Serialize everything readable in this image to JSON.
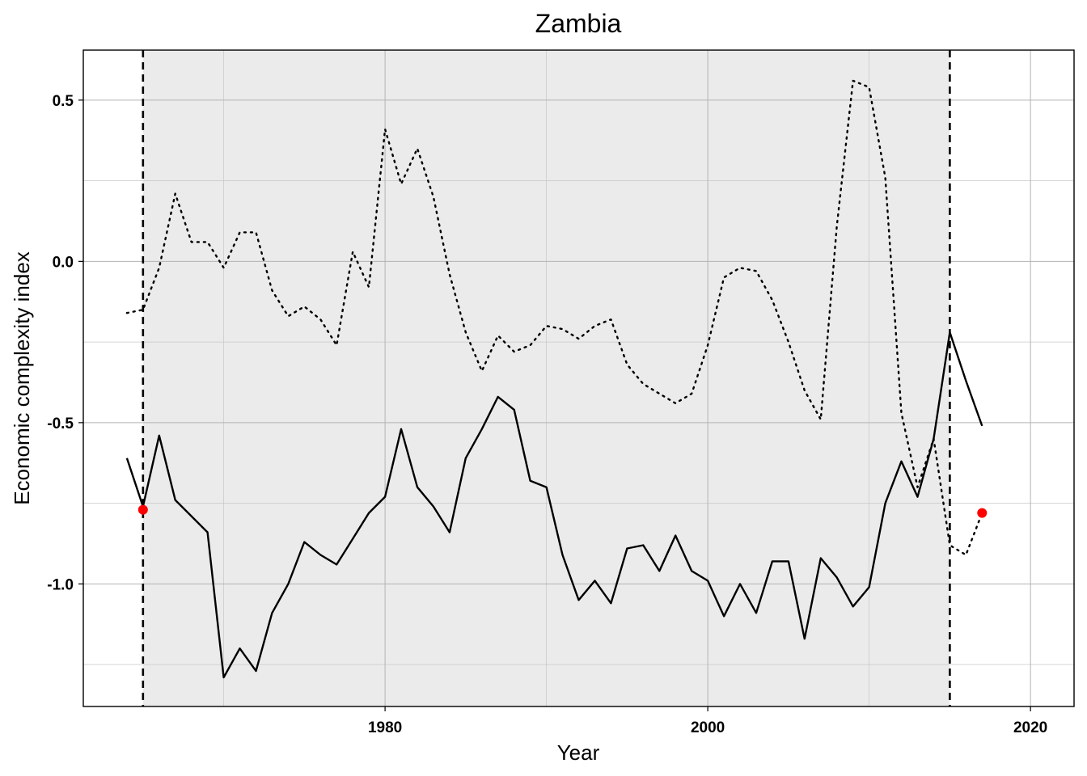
{
  "chart_data": {
    "type": "line",
    "title": "Zambia",
    "xlabel": "Year",
    "ylabel": "Economic complexity index",
    "xlim": [
      1961.3,
      2022.7
    ],
    "ylim": [
      -1.38,
      0.655
    ],
    "x_ticks": [
      1980,
      2000,
      2020
    ],
    "y_ticks": [
      -1.0,
      -0.5,
      0.0,
      0.5
    ],
    "y_tick_labels": [
      "-1.0",
      "-0.5",
      "0.0",
      "0.5"
    ],
    "x_minor_ticks": [
      1970,
      1990,
      2010
    ],
    "y_minor_ticks": [
      -1.25,
      -0.75,
      -0.25,
      0.25
    ],
    "grid": true,
    "legend": "none",
    "shaded_region": {
      "x_start": 1965,
      "x_end": 2015
    },
    "vertical_lines": [
      1965,
      2015
    ],
    "series": [
      {
        "style": "solid",
        "x": [
          1964,
          1965,
          1966,
          1967,
          1968,
          1969,
          1970,
          1971,
          1972,
          1973,
          1974,
          1975,
          1976,
          1977,
          1978,
          1979,
          1980,
          1981,
          1982,
          1983,
          1984,
          1985,
          1986,
          1987,
          1988,
          1989,
          1990,
          1991,
          1992,
          1993,
          1994,
          1995,
          1996,
          1997,
          1998,
          1999,
          2000,
          2001,
          2002,
          2003,
          2004,
          2005,
          2006,
          2007,
          2008,
          2009,
          2010,
          2011,
          2012,
          2013,
          2014,
          2015,
          2016,
          2017
        ],
        "values": [
          -0.61,
          -0.76,
          -0.54,
          -0.74,
          -0.79,
          -0.84,
          -1.29,
          -1.2,
          -1.27,
          -1.09,
          -1.0,
          -0.87,
          -0.91,
          -0.94,
          -0.86,
          -0.78,
          -0.73,
          -0.52,
          -0.7,
          -0.76,
          -0.84,
          -0.61,
          -0.52,
          -0.42,
          -0.46,
          -0.68,
          -0.7,
          -0.91,
          -1.05,
          -0.99,
          -1.06,
          -0.89,
          -0.88,
          -0.96,
          -0.85,
          -0.96,
          -0.99,
          -1.1,
          -1.0,
          -1.09,
          -0.93,
          -0.93,
          -1.17,
          -0.92,
          -0.98,
          -1.07,
          -1.01,
          -0.75,
          -0.62,
          -0.73,
          -0.55,
          -0.22,
          -0.37,
          -0.51
        ]
      },
      {
        "style": "dotted",
        "x": [
          1964,
          1965,
          1966,
          1967,
          1968,
          1969,
          1970,
          1971,
          1972,
          1973,
          1974,
          1975,
          1976,
          1977,
          1978,
          1979,
          1980,
          1981,
          1982,
          1983,
          1984,
          1985,
          1986,
          1987,
          1988,
          1989,
          1990,
          1991,
          1992,
          1993,
          1994,
          1995,
          1996,
          1997,
          1998,
          1999,
          2000,
          2001,
          2002,
          2003,
          2004,
          2005,
          2006,
          2007,
          2008,
          2009,
          2010,
          2011,
          2012,
          2013,
          2014,
          2015,
          2016,
          2017
        ],
        "values": [
          -0.16,
          -0.15,
          -0.02,
          0.21,
          0.06,
          0.06,
          -0.02,
          0.09,
          0.09,
          -0.09,
          -0.17,
          -0.14,
          -0.18,
          -0.26,
          0.03,
          -0.08,
          0.41,
          0.24,
          0.35,
          0.2,
          -0.04,
          -0.22,
          -0.34,
          -0.23,
          -0.28,
          -0.26,
          -0.2,
          -0.21,
          -0.24,
          -0.2,
          -0.18,
          -0.32,
          -0.38,
          -0.41,
          -0.44,
          -0.41,
          -0.26,
          -0.05,
          -0.02,
          -0.03,
          -0.12,
          -0.25,
          -0.4,
          -0.49,
          0.11,
          0.56,
          0.54,
          0.26,
          -0.47,
          -0.7,
          -0.55,
          -0.88,
          -0.91,
          -0.78
        ]
      }
    ],
    "points": [
      {
        "x": 1965,
        "y": -0.77,
        "color": "#ff0000"
      },
      {
        "x": 2017,
        "y": -0.78,
        "color": "#ff0000"
      }
    ],
    "colors": {
      "panel_fill": "#ebebeb",
      "line": "#000000",
      "point": "#ff0000",
      "grid": "#b3b3b3"
    }
  }
}
